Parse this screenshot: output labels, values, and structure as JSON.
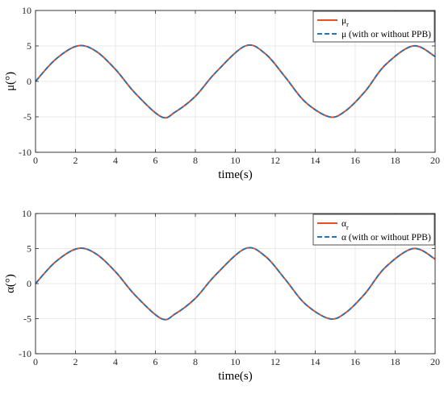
{
  "chart_data": [
    {
      "type": "line",
      "xlabel": "time(s)",
      "ylabel": "μ(°)",
      "xlim": [
        0,
        20
      ],
      "ylim": [
        -10,
        10
      ],
      "xticks": [
        "0",
        "2",
        "4",
        "6",
        "8",
        "10",
        "12",
        "14",
        "16",
        "18",
        "20"
      ],
      "yticks": [
        "10",
        "5",
        "0",
        "-5",
        "-10"
      ],
      "grid": true,
      "legend_position": "top-right",
      "x": [
        0,
        1,
        2.1,
        3,
        4,
        5,
        6.3,
        7,
        8,
        9,
        10.5,
        11.5,
        12.5,
        13.5,
        14.7,
        15.5,
        16.5,
        17.5,
        18.9,
        20
      ],
      "series": [
        {
          "name": "μ",
          "name_subscript": "r",
          "color": "#e8501f",
          "style": "solid",
          "values": [
            0,
            3.1,
            5.0,
            4.3,
            1.7,
            -1.7,
            -5.0,
            -4.3,
            -2.1,
            1.2,
            5.0,
            3.9,
            0.6,
            -2.9,
            -5.0,
            -4.2,
            -1.4,
            2.3,
            5.0,
            3.5
          ]
        },
        {
          "name": "μ (with or without PPB)",
          "color": "#1f74be",
          "style": "dashed",
          "values": [
            0,
            3.1,
            5.0,
            4.3,
            1.7,
            -1.7,
            -5.0,
            -4.3,
            -2.1,
            1.2,
            5.0,
            3.9,
            0.6,
            -2.9,
            -5.0,
            -4.2,
            -1.4,
            2.3,
            5.0,
            3.5
          ]
        }
      ]
    },
    {
      "type": "line",
      "xlabel": "time(s)",
      "ylabel": "α(°)",
      "xlim": [
        0,
        20
      ],
      "ylim": [
        -10,
        10
      ],
      "xticks": [
        "0",
        "2",
        "4",
        "6",
        "8",
        "10",
        "12",
        "14",
        "16",
        "18",
        "20"
      ],
      "yticks": [
        "10",
        "5",
        "0",
        "-5",
        "-10"
      ],
      "grid": true,
      "legend_position": "top-right",
      "x": [
        0,
        1,
        2.1,
        3,
        4,
        5,
        6.3,
        7,
        8,
        9,
        10.5,
        11.5,
        12.5,
        13.5,
        14.7,
        15.5,
        16.5,
        17.5,
        18.9,
        20
      ],
      "series": [
        {
          "name": "α",
          "name_subscript": "r",
          "color": "#e8501f",
          "style": "solid",
          "values": [
            0,
            3.1,
            5.0,
            4.3,
            1.7,
            -1.7,
            -5.0,
            -4.3,
            -2.1,
            1.2,
            5.0,
            3.9,
            0.6,
            -2.9,
            -5.0,
            -4.2,
            -1.4,
            2.3,
            5.0,
            3.5
          ]
        },
        {
          "name": "α (with or without PPB)",
          "color": "#1f74be",
          "style": "dashed",
          "values": [
            0,
            3.1,
            5.0,
            4.3,
            1.7,
            -1.7,
            -5.0,
            -4.3,
            -2.1,
            1.2,
            5.0,
            3.9,
            0.6,
            -2.9,
            -5.0,
            -4.2,
            -1.4,
            2.3,
            5.0,
            3.5
          ]
        }
      ]
    }
  ]
}
